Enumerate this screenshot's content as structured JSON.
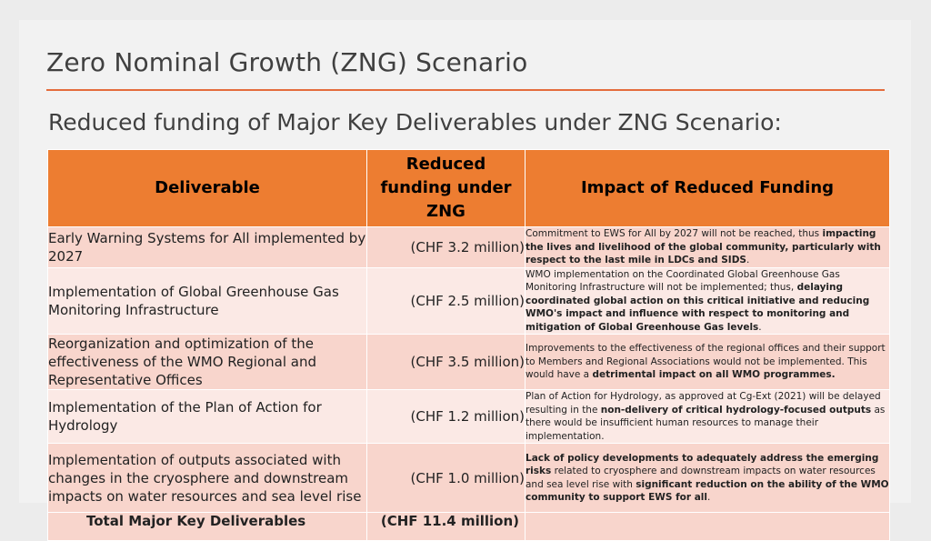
{
  "slide": {
    "title": "Zero Nominal Growth (ZNG) Scenario",
    "subtitle": "Reduced funding of Major Key Deliverables under ZNG Scenario:"
  },
  "table": {
    "headers": [
      "Deliverable",
      "Reduced funding under ZNG",
      "Impact of Reduced Funding"
    ],
    "rows": [
      {
        "deliverable": "Early Warning Systems for All implemented by 2027",
        "funding": "(CHF 3.2 million)",
        "impact": [
          {
            "t": "Commitment to EWS for All by 2027 will not be reached, thus ",
            "b": false
          },
          {
            "t": "impacting the lives and livelihood of the global community, particularly with respect to the last mile in LDCs and SIDS",
            "b": true
          },
          {
            "t": ".",
            "b": false
          }
        ]
      },
      {
        "deliverable": "Implementation of Global Greenhouse Gas Monitoring Infrastructure",
        "funding": "(CHF 2.5 million)",
        "impact": [
          {
            "t": "WMO implementation on the Coordinated Global Greenhouse Gas Monitoring Infrastructure will not be implemented; thus, ",
            "b": false
          },
          {
            "t": "delaying coordinated global action on this critical initiative and reducing WMO's impact and influence with respect to monitoring and mitigation of Global Greenhouse Gas levels",
            "b": true
          },
          {
            "t": ".",
            "b": false
          }
        ]
      },
      {
        "deliverable": "Reorganization and optimization of the effectiveness of the WMO Regional and Representative Offices",
        "funding": "(CHF 3.5 million)",
        "impact": [
          {
            "t": "Improvements to the effectiveness of the regional offices and their support to Members and Regional Associations would not be implemented. This would have a ",
            "b": false
          },
          {
            "t": "detrimental impact on all WMO programmes.",
            "b": true
          }
        ]
      },
      {
        "deliverable": "Implementation of the Plan of Action for Hydrology",
        "funding": "(CHF 1.2 million)",
        "impact": [
          {
            "t": "Plan of Action for Hydrology, as approved at Cg-Ext (2021) will be delayed resulting in the ",
            "b": false
          },
          {
            "t": "non-delivery of critical hydrology-focused outputs",
            "b": true
          },
          {
            "t": " as there would be insufficient human resources to manage their implementation.",
            "b": false
          }
        ]
      },
      {
        "deliverable": "Implementation of outputs associated with changes in the cryosphere and downstream impacts on water resources and sea level rise",
        "funding": "(CHF 1.0 million)",
        "impact": [
          {
            "t": "Lack of policy developments to adequately address the emerging risks",
            "b": true
          },
          {
            "t": " related to cryosphere and downstream impacts on water resources and sea level rise with ",
            "b": false
          },
          {
            "t": "significant reduction on the ability of the WMO community to support EWS for all",
            "b": true
          },
          {
            "t": ".",
            "b": false
          }
        ]
      }
    ],
    "total": {
      "label": "Total Major Key Deliverables",
      "funding": "(CHF 11.4 million)"
    }
  }
}
